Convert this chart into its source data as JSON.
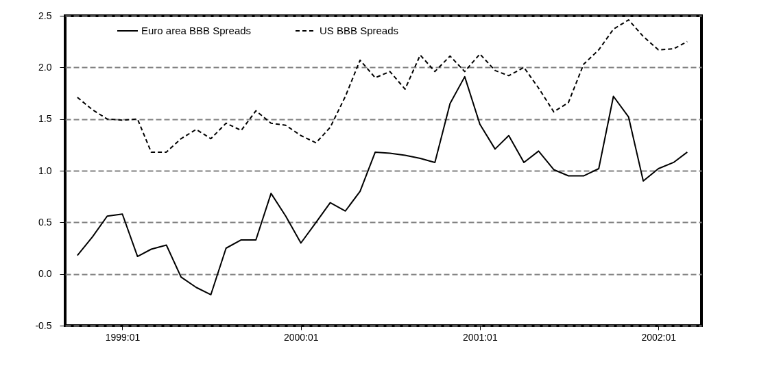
{
  "chart_data": {
    "type": "line",
    "x": [
      "1998-10",
      "1998-11",
      "1998-12",
      "1999-01",
      "1999-02",
      "1999-03",
      "1999-04",
      "1999-05",
      "1999-06",
      "1999-07",
      "1999-08",
      "1999-09",
      "1999-10",
      "1999-11",
      "1999-12",
      "2000-01",
      "2000-02",
      "2000-03",
      "2000-04",
      "2000-05",
      "2000-06",
      "2000-07",
      "2000-08",
      "2000-09",
      "2000-10",
      "2000-11",
      "2000-12",
      "2001-01",
      "2001-02",
      "2001-03",
      "2001-04",
      "2001-05",
      "2001-06",
      "2001-07",
      "2001-08",
      "2001-09",
      "2001-10",
      "2001-11",
      "2001-12",
      "2002-01",
      "2002-02",
      "2002-03"
    ],
    "series": [
      {
        "name": "Euro area BBB Spreads",
        "color": "#000000",
        "line_style": "solid",
        "values": [
          0.18,
          0.36,
          0.56,
          0.58,
          0.17,
          0.24,
          0.28,
          -0.03,
          -0.13,
          -0.2,
          0.25,
          0.33,
          0.33,
          0.78,
          0.56,
          0.3,
          0.5,
          0.69,
          0.61,
          0.8,
          1.18,
          1.17,
          1.15,
          1.12,
          1.08,
          1.65,
          1.91,
          1.45,
          1.21,
          1.34,
          1.08,
          1.19,
          1.01,
          0.95,
          0.95,
          1.02,
          1.72,
          1.52,
          0.9,
          1.02,
          1.08,
          1.18
        ]
      },
      {
        "name": "US BBB Spreads",
        "color": "#000000",
        "line_style": "dashed",
        "values": [
          1.71,
          1.59,
          1.5,
          1.49,
          1.5,
          1.18,
          1.18,
          1.31,
          1.4,
          1.31,
          1.46,
          1.39,
          1.58,
          1.46,
          1.44,
          1.34,
          1.27,
          1.42,
          1.72,
          2.07,
          1.9,
          1.96,
          1.79,
          2.12,
          1.96,
          2.11,
          1.96,
          2.13,
          1.97,
          1.92,
          2.0,
          1.8,
          1.57,
          1.66,
          2.03,
          2.17,
          2.37,
          2.46,
          2.3,
          2.17,
          2.18,
          2.25
        ]
      }
    ],
    "xlim": [
      "1998-09-06",
      "2002-03-30"
    ],
    "xticks": [
      {
        "value": "1999-01",
        "label": "1999:01"
      },
      {
        "value": "2000-01",
        "label": "2000:01"
      },
      {
        "value": "2001-01",
        "label": "2001:01"
      },
      {
        "value": "2002-01",
        "label": "2002:01"
      }
    ],
    "ylim": [
      -0.5,
      2.5
    ],
    "yticks": [
      {
        "value": -0.5,
        "label": "-0.5"
      },
      {
        "value": 0,
        "label": "0.0"
      },
      {
        "value": 0.5,
        "label": "0.5"
      },
      {
        "value": 1,
        "label": "1.0"
      },
      {
        "value": 1.5,
        "label": "1.5"
      },
      {
        "value": 2,
        "label": "2.0"
      },
      {
        "value": 2.5,
        "label": "2.5"
      }
    ],
    "grid": "y",
    "legend": "top",
    "marker": "none"
  }
}
